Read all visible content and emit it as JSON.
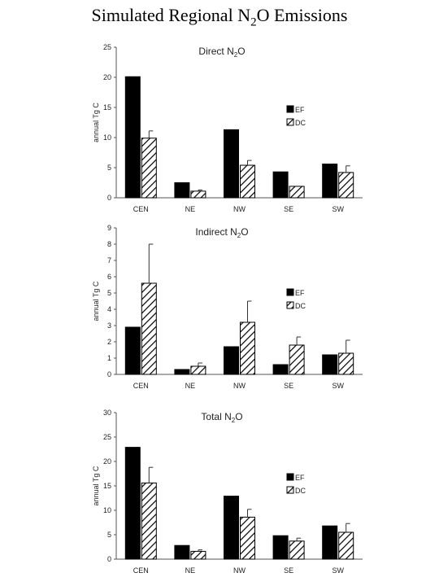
{
  "page": {
    "title_prefix": "Simulated Regional N",
    "title_sub": "2",
    "title_suffix": "O Emissions"
  },
  "chart_data": [
    {
      "type": "bar",
      "title": "Direct N2O",
      "ylabel": "annual Tg C",
      "categories": [
        "CEN",
        "NE",
        "NW",
        "SE",
        "SW"
      ],
      "ylim": [
        0,
        25
      ],
      "yticks": [
        0,
        5,
        10,
        15,
        20,
        25
      ],
      "legend_position": "right",
      "series": [
        {
          "name": "EF",
          "values": [
            20.1,
            2.5,
            11.3,
            4.3,
            5.6
          ],
          "errors": [
            null,
            null,
            null,
            null,
            null
          ],
          "color": "#000000"
        },
        {
          "name": "DC",
          "values": [
            9.9,
            1.1,
            5.4,
            1.9,
            4.2
          ],
          "errors": [
            1.2,
            0.2,
            0.8,
            null,
            1.1
          ],
          "color": "#ffffff"
        }
      ]
    },
    {
      "type": "bar",
      "title": "Indirect N2O",
      "ylabel": "annual Tg C",
      "categories": [
        "CEN",
        "NE",
        "NW",
        "SE",
        "SW"
      ],
      "ylim": [
        0,
        9
      ],
      "yticks": [
        0,
        1,
        2,
        3,
        4,
        5,
        6,
        7,
        8,
        9
      ],
      "legend_position": "right",
      "series": [
        {
          "name": "EF",
          "values": [
            2.9,
            0.3,
            1.7,
            0.6,
            1.2
          ],
          "errors": [
            null,
            null,
            null,
            null,
            null
          ],
          "color": "#000000"
        },
        {
          "name": "DC",
          "values": [
            5.6,
            0.5,
            3.2,
            1.8,
            1.3
          ],
          "errors": [
            2.4,
            0.2,
            1.3,
            0.5,
            0.8
          ],
          "color": "#ffffff"
        }
      ]
    },
    {
      "type": "bar",
      "title": "Total N2O",
      "ylabel": "annual Tg C",
      "categories": [
        "CEN",
        "NE",
        "NW",
        "SE",
        "SW"
      ],
      "ylim": [
        0,
        30
      ],
      "yticks": [
        0,
        5,
        10,
        15,
        20,
        25,
        30
      ],
      "legend_position": "right",
      "series": [
        {
          "name": "EF",
          "values": [
            22.9,
            2.8,
            12.9,
            4.8,
            6.8
          ],
          "errors": [
            null,
            null,
            null,
            null,
            null
          ],
          "color": "#000000"
        },
        {
          "name": "DC",
          "values": [
            15.6,
            1.6,
            8.6,
            3.7,
            5.5
          ],
          "errors": [
            3.2,
            0.3,
            1.6,
            0.6,
            1.8
          ],
          "color": "#ffffff"
        }
      ]
    }
  ]
}
